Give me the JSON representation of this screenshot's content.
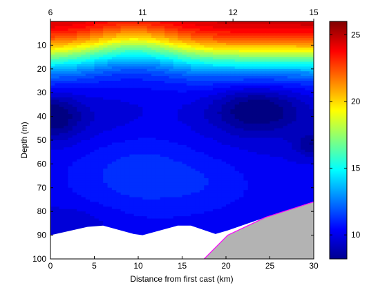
{
  "chart_data": {
    "type": "heatmap",
    "subtype": "filled-contour section",
    "xlabel": "Distance from first cast (km)",
    "ylabel": "Depth (m)",
    "xlim": [
      0,
      30
    ],
    "ylim": [
      100,
      0
    ],
    "y_reversed": true,
    "x_ticks": [
      0,
      5,
      10,
      15,
      20,
      25,
      30
    ],
    "y_ticks": [
      10,
      20,
      30,
      40,
      50,
      60,
      70,
      80,
      90,
      100
    ],
    "top_axis": {
      "label": "",
      "ticks": [
        {
          "label": "6",
          "x": 0
        },
        {
          "label": "11",
          "x": 10.5
        },
        {
          "label": "12",
          "x": 20.8
        },
        {
          "label": "15",
          "x": 30
        }
      ]
    },
    "colorbar": {
      "colormap": "jet",
      "min": 8.2,
      "max": 26,
      "ticks": [
        10,
        15,
        20,
        25
      ],
      "placement": "right"
    },
    "grid": false,
    "bathymetry": {
      "color": "#b3b3b3",
      "outline_color": "#ff00ff",
      "profile": [
        [
          17.5,
          100
        ],
        [
          20.2,
          90
        ],
        [
          24.5,
          82.5
        ],
        [
          30,
          76
        ],
        [
          30,
          100
        ]
      ]
    },
    "no_data_color": "#ffffff",
    "bottom_of_data_profile": [
      [
        0,
        90
      ],
      [
        4.2,
        86.5
      ],
      [
        6,
        86
      ],
      [
        9.5,
        89.5
      ],
      [
        10.5,
        90
      ],
      [
        14.5,
        86
      ],
      [
        16,
        86
      ],
      [
        18.8,
        89.5
      ],
      [
        20.2,
        88
      ],
      [
        24.5,
        82.5
      ],
      [
        30,
        76
      ]
    ],
    "cold_cores": [
      {
        "x": 0.2,
        "depth": 40,
        "value": 8.4
      },
      {
        "x": 23.5,
        "depth": 37,
        "value": 8.5
      },
      {
        "x": 29.8,
        "depth": 52,
        "value": 8.8
      }
    ],
    "mid_depth_body": {
      "x": 10,
      "depth": 64,
      "value": 11.2
    }
  }
}
